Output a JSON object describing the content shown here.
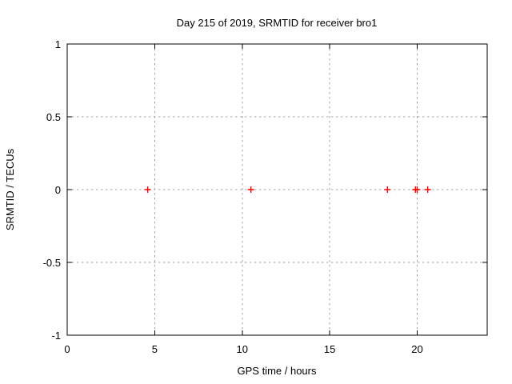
{
  "page": {
    "background": "#ffffff"
  },
  "chart_data": {
    "type": "scatter",
    "title": "Day 215 of 2019, SRMTID for receiver bro1",
    "xlabel": "GPS time / hours",
    "ylabel": "SRMTID / TECUs",
    "xlim": [
      0,
      24
    ],
    "ylim": [
      -1,
      1
    ],
    "xticks": [
      0,
      5,
      10,
      15,
      20
    ],
    "yticks": [
      1,
      0.5,
      0,
      -0.5,
      -1
    ],
    "grid": true,
    "legend": "none",
    "series": [
      {
        "name": "SRMTID",
        "marker": "plus",
        "color": "#ff0000",
        "x": [
          4.6,
          10.5,
          18.3,
          19.9,
          20.0,
          20.6
        ],
        "y": [
          0,
          0,
          0,
          0,
          0,
          0
        ]
      }
    ],
    "colors": {
      "grid": "#a6a6a6",
      "axis": "#000000",
      "text": "#000000",
      "marker": "#ff0000"
    }
  }
}
